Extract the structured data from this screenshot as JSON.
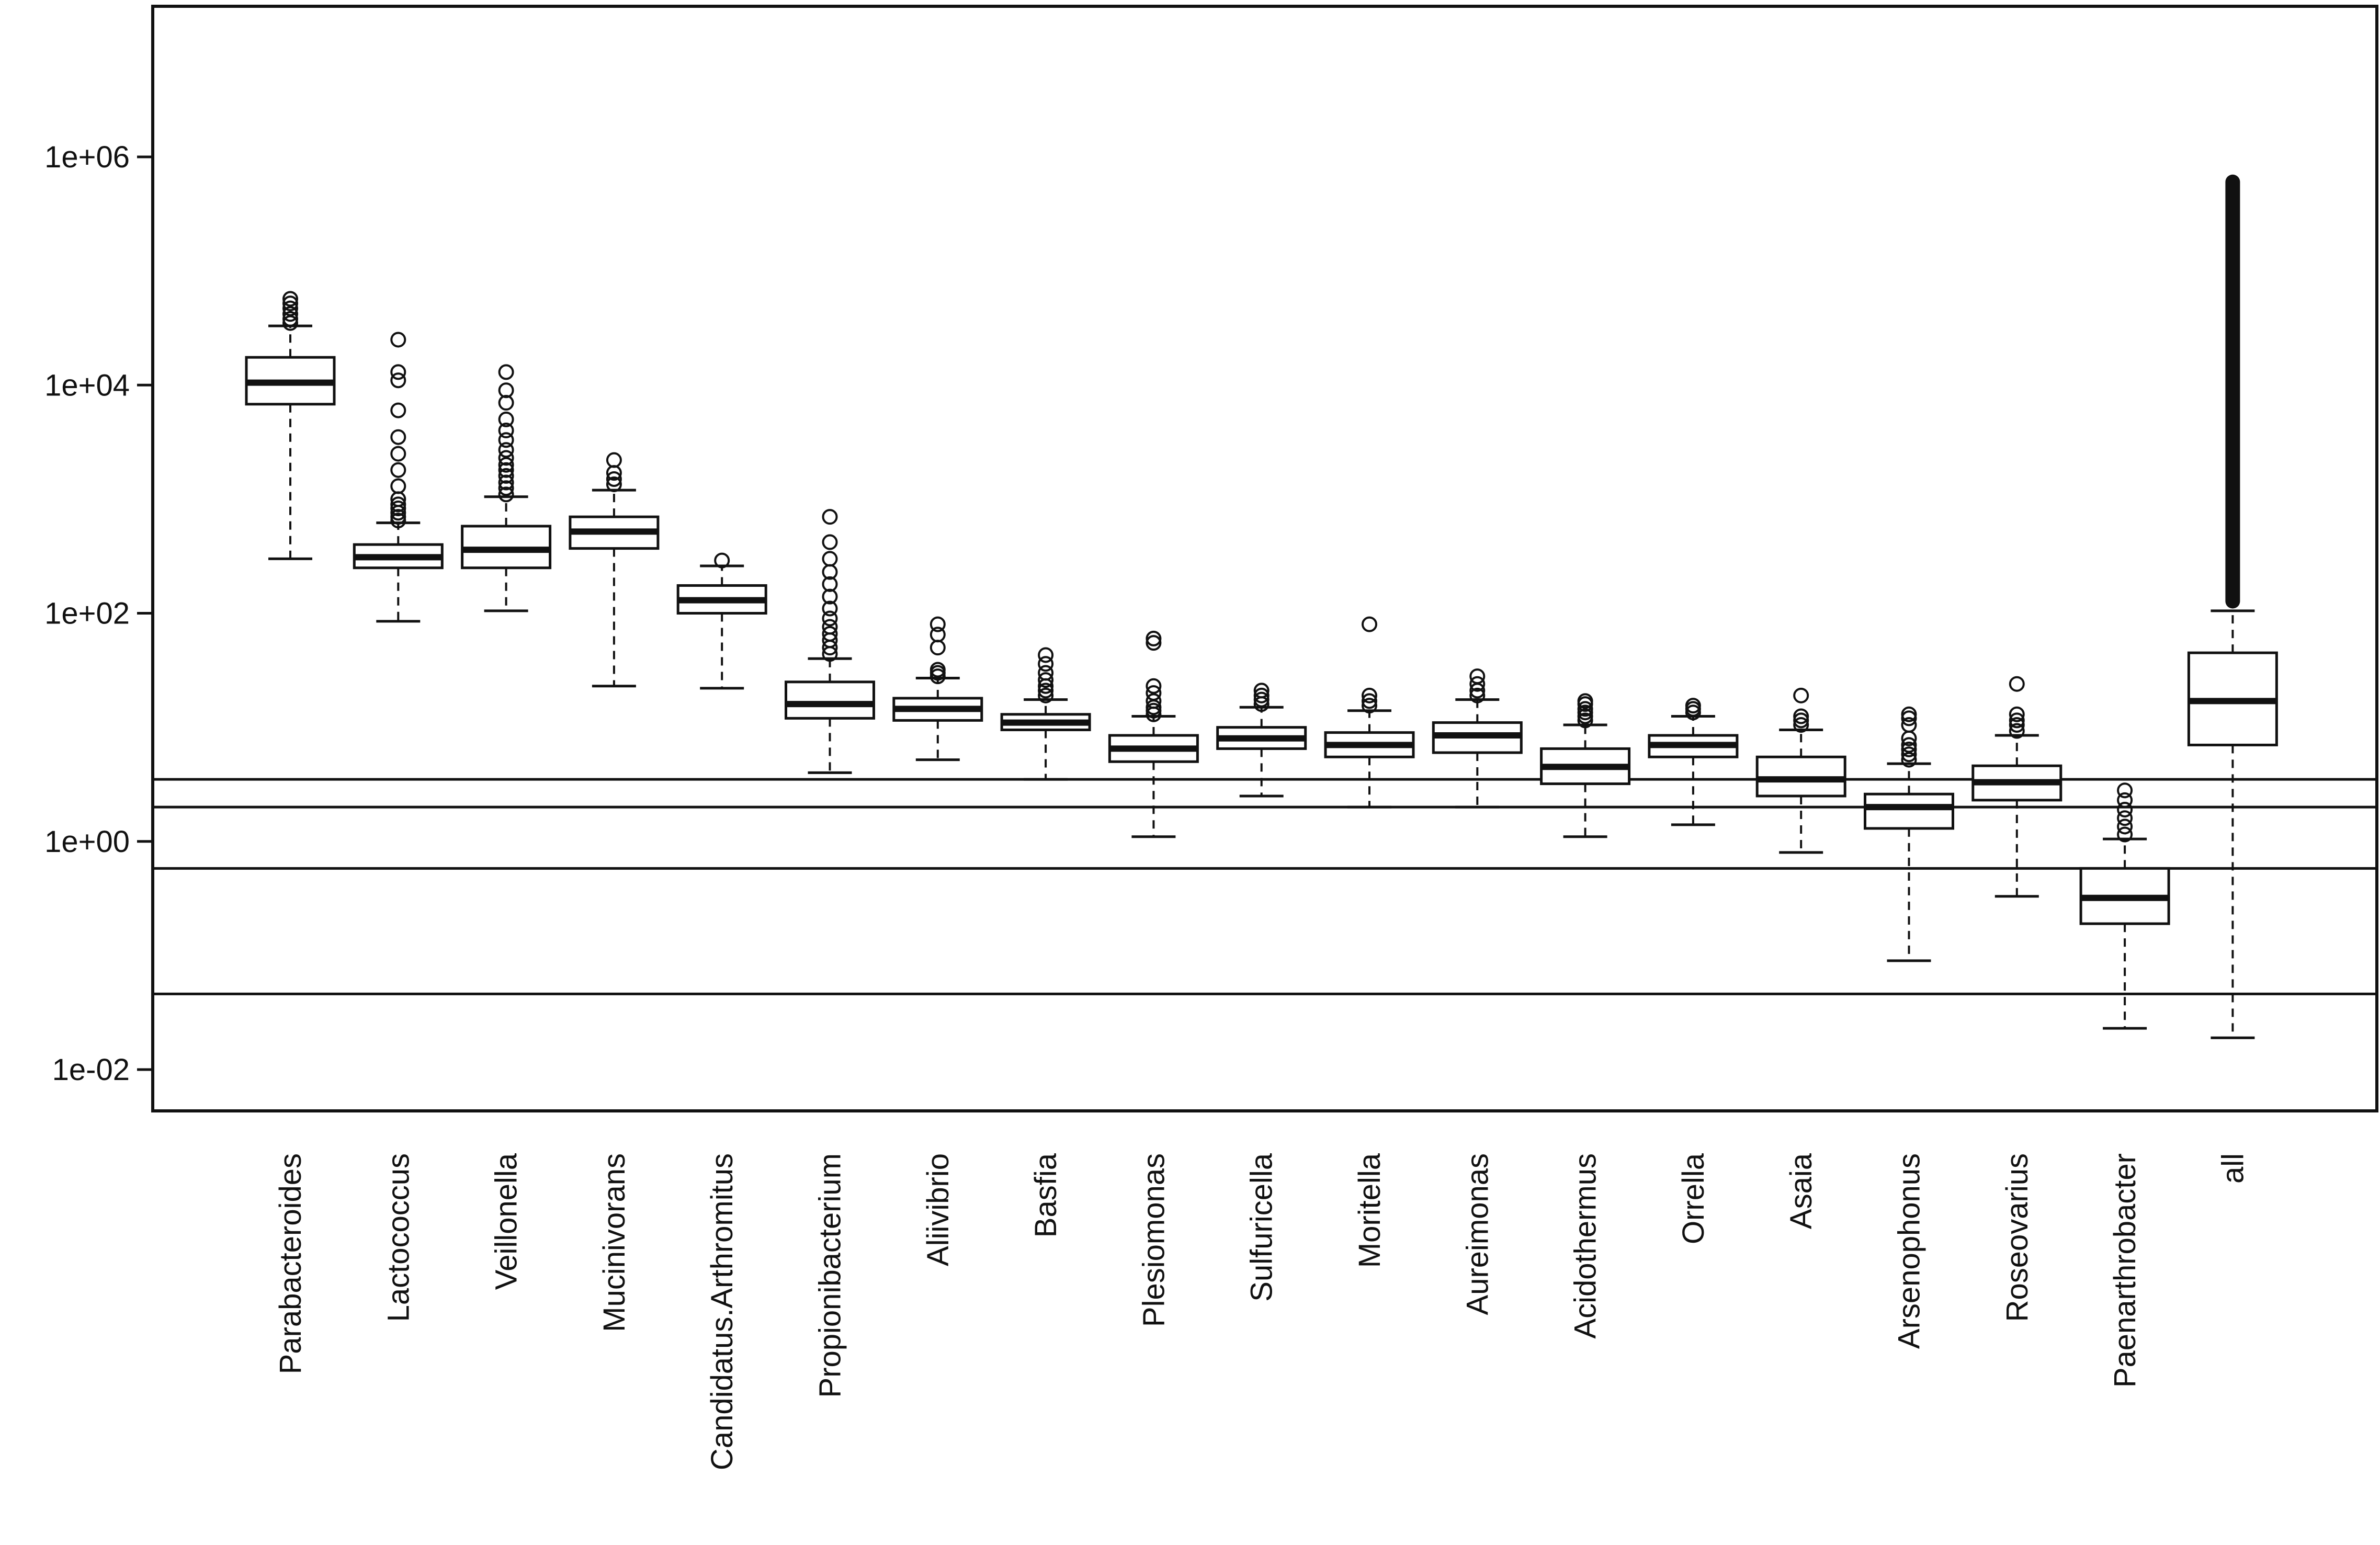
{
  "chart_data": {
    "type": "boxplot",
    "title": "",
    "xlabel": "",
    "ylabel": "",
    "yscale": "log",
    "ylim": [
      0.005,
      20000000
    ],
    "yticks": [
      {
        "value": 0.01,
        "label": "1e-02"
      },
      {
        "value": 1,
        "label": "1e+00"
      },
      {
        "value": 100,
        "label": "1e+02"
      },
      {
        "value": 10000,
        "label": "1e+04"
      },
      {
        "value": 1000000,
        "label": "1e+06"
      }
    ],
    "hlines": [
      3.5,
      2.0,
      0.58,
      0.046
    ],
    "categories": [
      "Parabacteroides",
      "Lactococcus",
      "Veillonella",
      "Mucinivorans",
      "Candidatus.Arthromitus",
      "Propionibacterium",
      "Aliivibrio",
      "Basfia",
      "Plesiomonas",
      "Sulfuricella",
      "Moritella",
      "Aureimonas",
      "Acidothermus",
      "Orrella",
      "Asaia",
      "Arsenophonus",
      "Roseovarius",
      "Paenarthrobacter",
      "all"
    ],
    "boxes": [
      {
        "name": "Parabacteroides",
        "whisker_low": 300,
        "q1": 6800,
        "median": 10500,
        "q3": 17500,
        "whisker_high": 33000,
        "outliers": [
          35000,
          38000,
          42000,
          47000,
          52000,
          57000
        ]
      },
      {
        "name": "Lactococcus",
        "whisker_low": 85,
        "q1": 250,
        "median": 310,
        "q3": 400,
        "whisker_high": 620,
        "outliers": [
          650,
          700,
          760,
          830,
          900,
          1000,
          1300,
          1800,
          2500,
          3500,
          6000,
          11000,
          13000,
          25000
        ]
      },
      {
        "name": "Veillonella",
        "whisker_low": 105,
        "q1": 250,
        "median": 360,
        "q3": 580,
        "whisker_high": 1050,
        "outliers": [
          1100,
          1250,
          1400,
          1600,
          1800,
          2000,
          2300,
          2700,
          3300,
          4000,
          5000,
          7000,
          9000,
          13000
        ]
      },
      {
        "name": "Mucinivorans",
        "whisker_low": 23,
        "q1": 370,
        "median": 520,
        "q3": 700,
        "whisker_high": 1200,
        "outliers": [
          1350,
          1500,
          1700,
          2200
        ]
      },
      {
        "name": "Candidatus.Arthromitus",
        "whisker_low": 22,
        "q1": 100,
        "median": 130,
        "q3": 175,
        "whisker_high": 260,
        "outliers": [
          290
        ]
      },
      {
        "name": "Propionibacterium",
        "whisker_low": 4,
        "q1": 12,
        "median": 16,
        "q3": 25,
        "whisker_high": 40,
        "outliers": [
          44,
          50,
          58,
          66,
          76,
          90,
          110,
          140,
          180,
          230,
          300,
          420,
          700
        ]
      },
      {
        "name": "Aliivibrio",
        "whisker_low": 5.2,
        "q1": 11.5,
        "median": 14.5,
        "q3": 18,
        "whisker_high": 27,
        "outliers": [
          28,
          30,
          32,
          50,
          65,
          80
        ]
      },
      {
        "name": "Basfia",
        "whisker_low": 3.5,
        "q1": 9.5,
        "median": 11,
        "q3": 13,
        "whisker_high": 17.5,
        "outliers": [
          19,
          21,
          23,
          26,
          30,
          36,
          43
        ]
      },
      {
        "name": "Plesiomonas",
        "whisker_low": 1.1,
        "q1": 5,
        "median": 6.5,
        "q3": 8.5,
        "whisker_high": 12.5,
        "outliers": [
          13,
          14,
          15,
          17,
          20,
          23,
          55,
          60
        ]
      },
      {
        "name": "Sulfuricella",
        "whisker_low": 2.5,
        "q1": 6.5,
        "median": 8,
        "q3": 10,
        "whisker_high": 15,
        "outliers": [
          16,
          17.5,
          19,
          21
        ]
      },
      {
        "name": "Moritella",
        "whisker_low": 2,
        "q1": 5.5,
        "median": 7,
        "q3": 9,
        "whisker_high": 14,
        "outliers": [
          15.5,
          17,
          19,
          80
        ]
      },
      {
        "name": "Aureimonas",
        "whisker_low": 2,
        "q1": 6,
        "median": 8.5,
        "q3": 11,
        "whisker_high": 17.5,
        "outliers": [
          19,
          21,
          24,
          28
        ]
      },
      {
        "name": "Acidothermus",
        "whisker_low": 1.1,
        "q1": 3.2,
        "median": 4.5,
        "q3": 6.5,
        "whisker_high": 10.5,
        "outliers": [
          11.5,
          12.5,
          13.5,
          14.5,
          16,
          17
        ]
      },
      {
        "name": "Orrella",
        "whisker_low": 1.4,
        "q1": 5.5,
        "median": 7,
        "q3": 8.5,
        "whisker_high": 12.5,
        "outliers": [
          13.5,
          14.5,
          15.5
        ]
      },
      {
        "name": "Asaia",
        "whisker_low": 0.8,
        "q1": 2.5,
        "median": 3.5,
        "q3": 5.5,
        "whisker_high": 9.5,
        "outliers": [
          10.5,
          11.5,
          12.5,
          19
        ]
      },
      {
        "name": "Arsenophonus",
        "whisker_low": 0.09,
        "q1": 1.3,
        "median": 2,
        "q3": 2.6,
        "whisker_high": 4.8,
        "outliers": [
          5.2,
          5.8,
          6.4,
          7,
          8,
          10.5,
          12,
          13
        ]
      },
      {
        "name": "Roseovarius",
        "whisker_low": 0.33,
        "q1": 2.3,
        "median": 3.3,
        "q3": 4.6,
        "whisker_high": 8.5,
        "outliers": [
          9.3,
          10.5,
          11.5,
          13,
          24
        ]
      },
      {
        "name": "Paenarthrobacter",
        "whisker_low": 0.023,
        "q1": 0.19,
        "median": 0.32,
        "q3": 0.58,
        "whisker_high": 1.05,
        "outliers": [
          1.15,
          1.35,
          1.6,
          1.9,
          2.3,
          2.8
        ]
      },
      {
        "name": "all",
        "whisker_low": 0.019,
        "q1": 7,
        "median": 17,
        "q3": 45,
        "whisker_high": 105,
        "outliers": [],
        "outlier_band": [
          110,
          700000
        ]
      }
    ]
  }
}
